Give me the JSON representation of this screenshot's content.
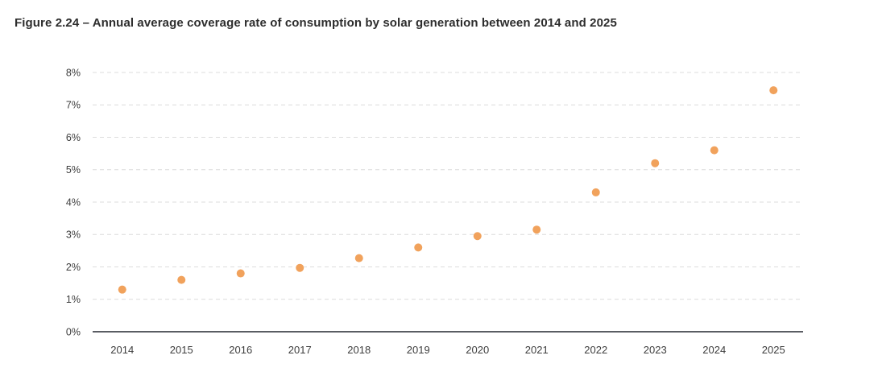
{
  "title": "Figure 2.24 – Annual average coverage rate of consumption by solar generation between 2014 and 2025",
  "chart_data": {
    "type": "scatter",
    "title": "Figure 2.24 – Annual average coverage rate of consumption by solar generation between 2014 and 2025",
    "categories": [
      "2014",
      "2015",
      "2016",
      "2017",
      "2018",
      "2019",
      "2020",
      "2021",
      "2022",
      "2023",
      "2024",
      "2025"
    ],
    "values": [
      1.3,
      1.6,
      1.8,
      1.97,
      2.27,
      2.6,
      2.95,
      3.15,
      4.3,
      5.2,
      5.6,
      7.45
    ],
    "series_name": "Annual average coverage rate of consumption by solar generation",
    "xlabel": "",
    "ylabel": "",
    "ylim": [
      0,
      8
    ],
    "ytick_step": 1,
    "ytick_labels": [
      "0%",
      "1%",
      "2%",
      "3%",
      "4%",
      "5%",
      "6%",
      "7%",
      "8%"
    ],
    "grid": "horizontal-dashed",
    "legend": "none"
  },
  "colors": {
    "point": "#F1A25C",
    "gridline": "#DCDCDC",
    "axis": "#5A5D63",
    "tick_text": "#3D3D3D",
    "title_text": "#2D2D2D",
    "background": "#FFFFFF"
  }
}
